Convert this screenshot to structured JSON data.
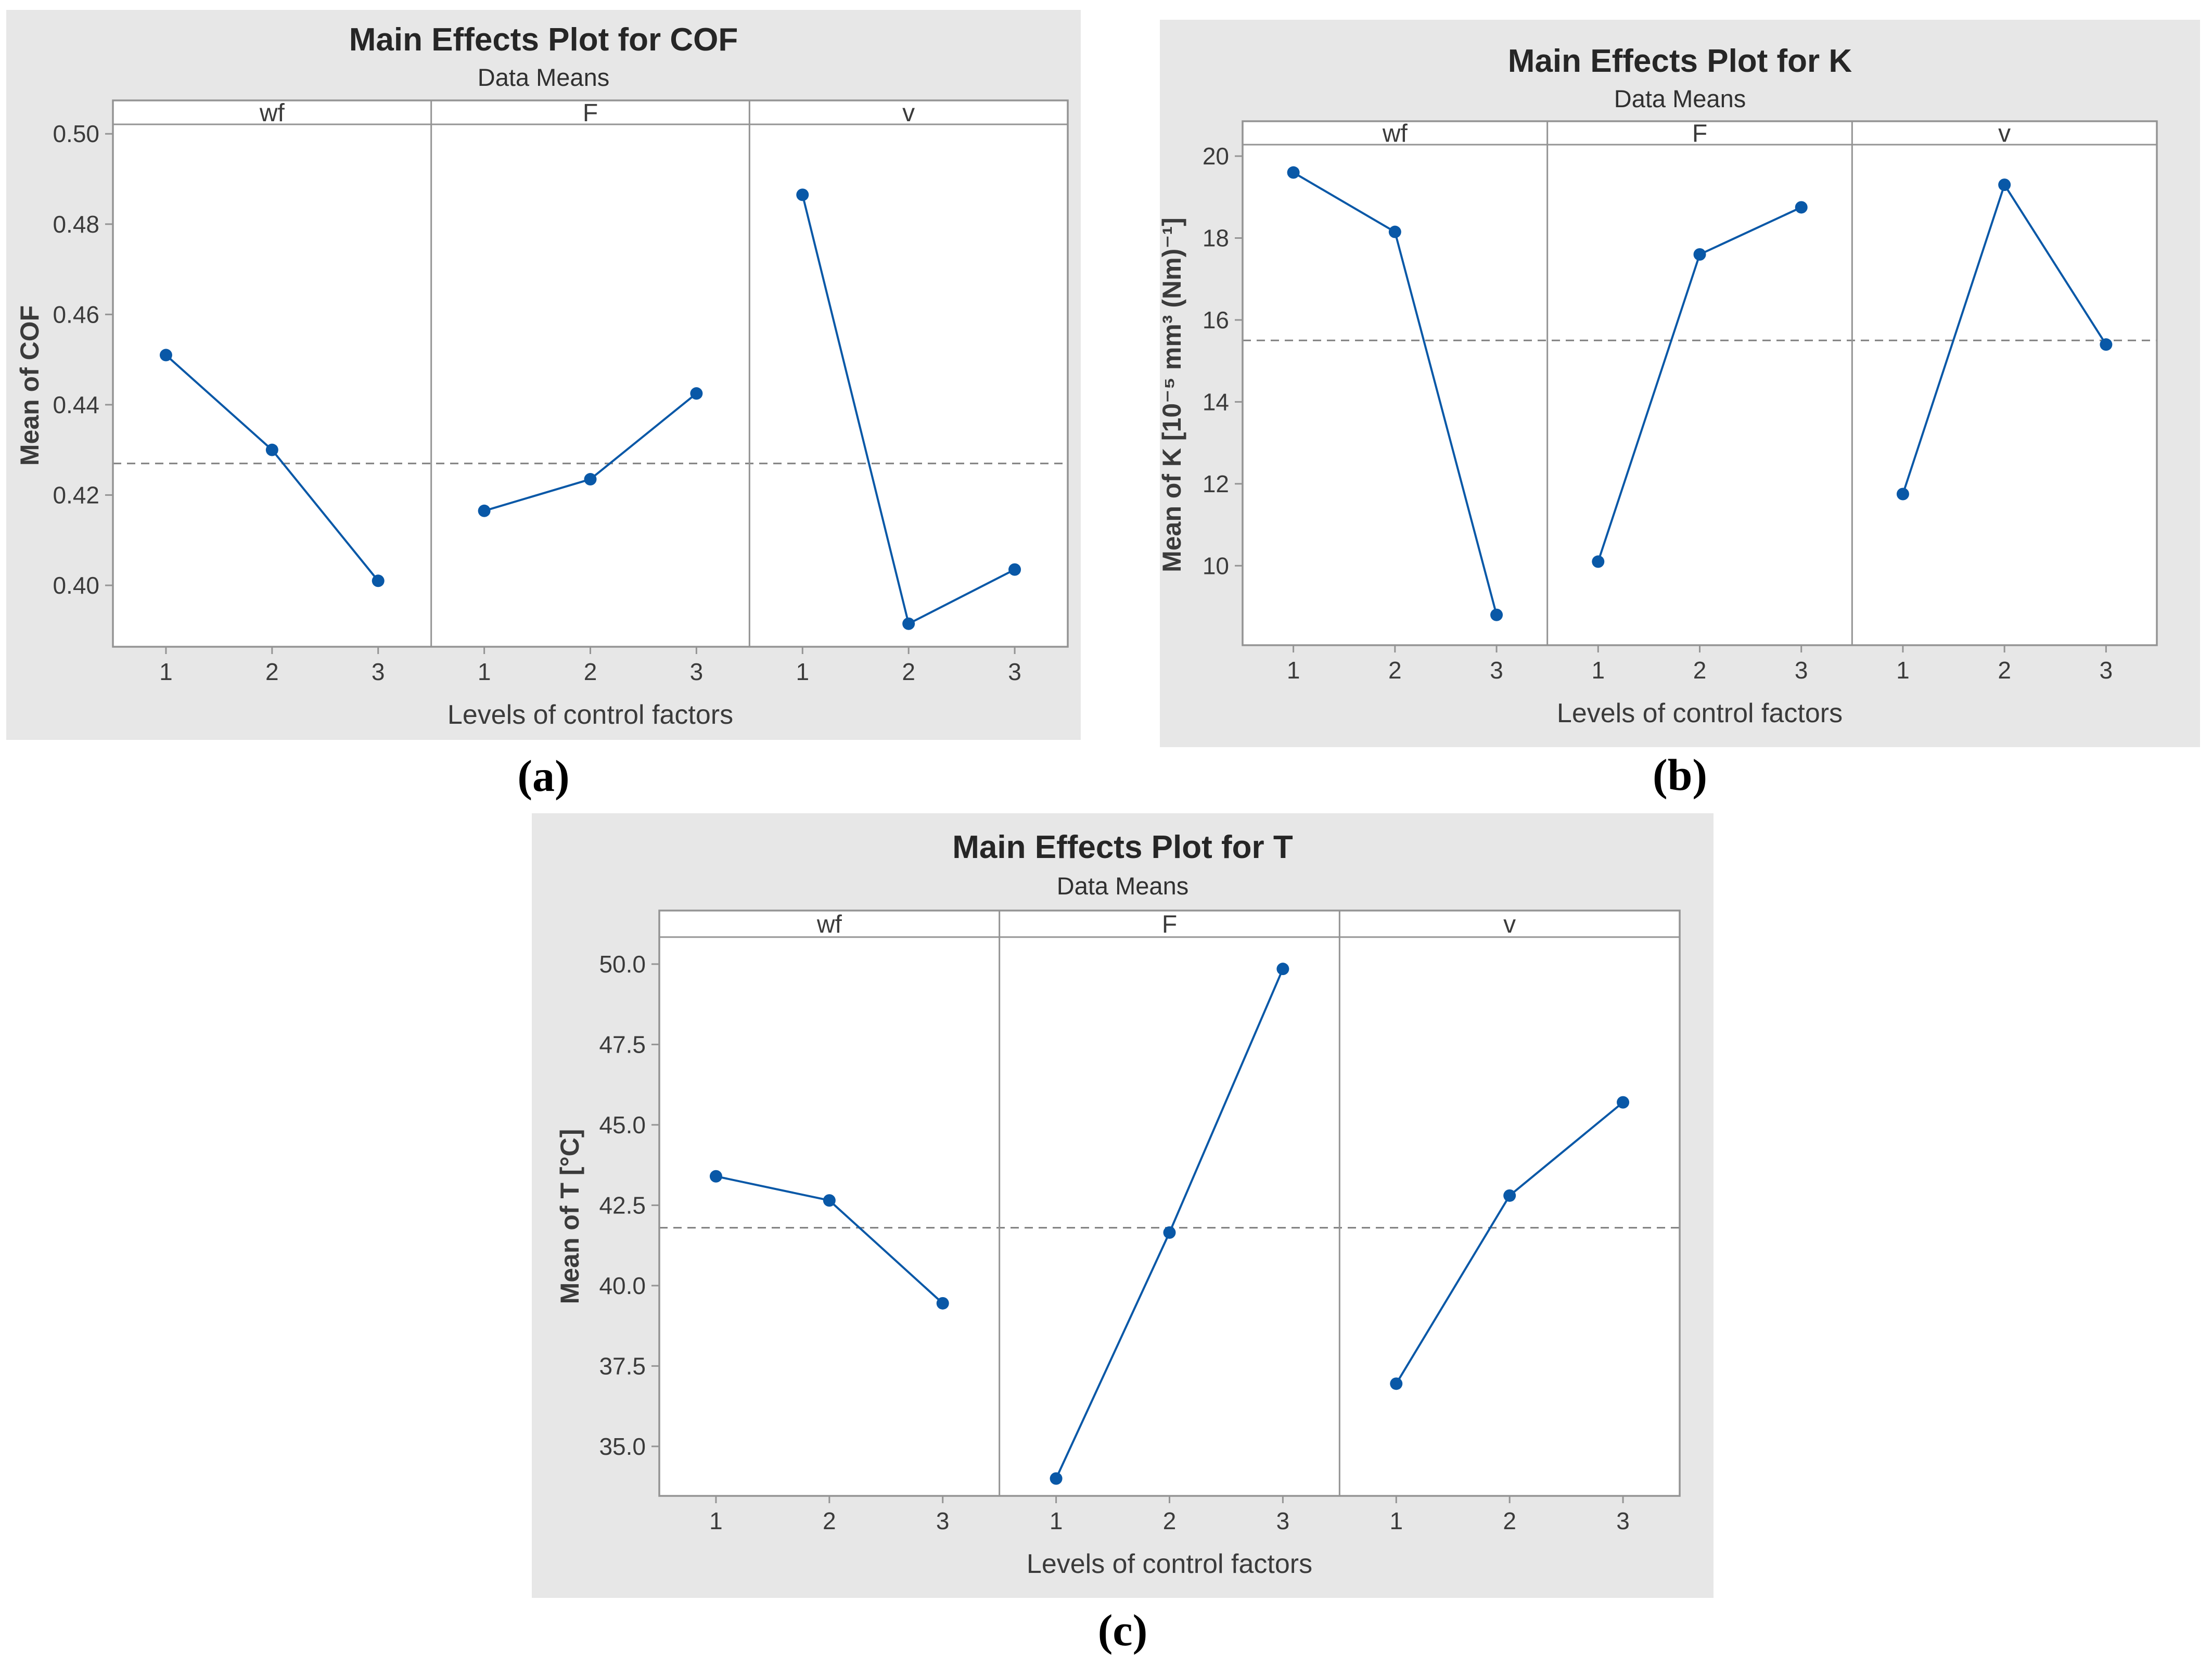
{
  "page": {
    "background_color": "#ffffff"
  },
  "colors": {
    "figure_background": "#e7e7e7",
    "plot_background": "#ffffff",
    "frame": "#949494",
    "series": "#0958a7",
    "mean_line": "#808080",
    "text": "#3b3b3b",
    "title_text": "#262626"
  },
  "chart_data": [
    {
      "type": "line",
      "id": "a",
      "caption": "(a)",
      "title": "Main Effects Plot for COF",
      "subtitle": "Data Means",
      "ylabel": "Mean of COF",
      "xlabel": "Levels of control factors",
      "panel_labels": [
        "wf",
        "F",
        "v"
      ],
      "x_tick_labels": [
        "1",
        "2",
        "3"
      ],
      "y_ticks": [
        0.4,
        0.42,
        0.44,
        0.46,
        0.48,
        0.5
      ],
      "y_tick_labels": [
        "0.40",
        "0.42",
        "0.44",
        "0.46",
        "0.48",
        "0.50"
      ],
      "ylim": [
        0.3864,
        0.5021
      ],
      "grand_mean": 0.427,
      "grid": false,
      "legend": "none",
      "series": [
        {
          "name": "wf",
          "values": [
            0.451,
            0.43,
            0.401
          ]
        },
        {
          "name": "F",
          "values": [
            0.4165,
            0.4235,
            0.4425
          ]
        },
        {
          "name": "v",
          "values": [
            0.4865,
            0.3915,
            0.4035
          ]
        }
      ]
    },
    {
      "type": "line",
      "id": "b",
      "caption": "(b)",
      "title": "Main Effects Plot for K",
      "subtitle": "Data Means",
      "ylabel": "Mean of K [10⁻⁵ mm³ (Nm)⁻¹]",
      "xlabel": "Levels of control factors",
      "panel_labels": [
        "wf",
        "F",
        "v"
      ],
      "x_tick_labels": [
        "1",
        "2",
        "3"
      ],
      "y_ticks": [
        10,
        12,
        14,
        16,
        18,
        20
      ],
      "y_tick_labels": [
        "10",
        "12",
        "14",
        "16",
        "18",
        "20"
      ],
      "ylim": [
        8.06,
        20.28
      ],
      "grand_mean": 15.5,
      "grid": false,
      "legend": "none",
      "series": [
        {
          "name": "wf",
          "values": [
            19.6,
            18.15,
            8.8
          ]
        },
        {
          "name": "F",
          "values": [
            10.1,
            17.6,
            18.75
          ]
        },
        {
          "name": "v",
          "values": [
            11.75,
            19.3,
            15.4
          ]
        }
      ]
    },
    {
      "type": "line",
      "id": "c",
      "caption": "(c)",
      "title": "Main Effects Plot for T",
      "subtitle": "Data Means",
      "ylabel": "Mean of T  [°C]",
      "xlabel": "Levels of control factors",
      "panel_labels": [
        "wf",
        "F",
        "v"
      ],
      "x_tick_labels": [
        "1",
        "2",
        "3"
      ],
      "y_ticks": [
        35.0,
        37.5,
        40.0,
        42.5,
        45.0,
        47.5,
        50.0
      ],
      "y_tick_labels": [
        "35.0",
        "37.5",
        "40.0",
        "42.5",
        "45.0",
        "47.5",
        "50.0"
      ],
      "ylim": [
        33.46,
        50.84
      ],
      "grand_mean": 41.8,
      "grid": false,
      "legend": "none",
      "series": [
        {
          "name": "wf",
          "values": [
            43.4,
            42.65,
            39.45
          ]
        },
        {
          "name": "F",
          "values": [
            34.0,
            41.65,
            49.85
          ]
        },
        {
          "name": "v",
          "values": [
            36.95,
            42.8,
            45.7
          ]
        }
      ]
    }
  ]
}
